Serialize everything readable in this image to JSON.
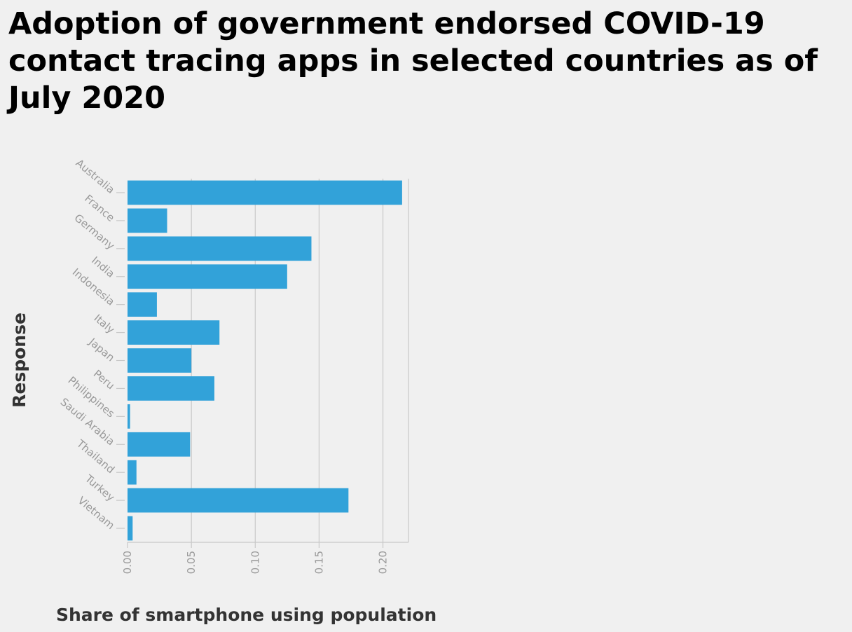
{
  "chart_data": {
    "type": "bar",
    "orientation": "horizontal",
    "title": "Adoption of government endorsed COVID-19 contact tracing apps in selected countries as of July 2020",
    "xlabel": "Share of smartphone using population",
    "ylabel": "Response",
    "categories": [
      "Australia",
      "France",
      "Germany",
      "India",
      "Indonesia",
      "Italy",
      "Japan",
      "Peru",
      "Philippines",
      "Saudi Arabia",
      "Thailand",
      "Turkey",
      "Vietnam"
    ],
    "values": [
      0.215,
      0.031,
      0.144,
      0.125,
      0.023,
      0.072,
      0.05,
      0.068,
      0.002,
      0.049,
      0.007,
      0.173,
      0.004
    ],
    "xlim": [
      0,
      0.22
    ],
    "xticks": [
      "0.00",
      "0.05",
      "0.10",
      "0.15",
      "0.20"
    ],
    "xtick_values": [
      0,
      0.05,
      0.1,
      0.15,
      0.2
    ],
    "grid": "vertical",
    "bar_color": "#32a2d9"
  }
}
